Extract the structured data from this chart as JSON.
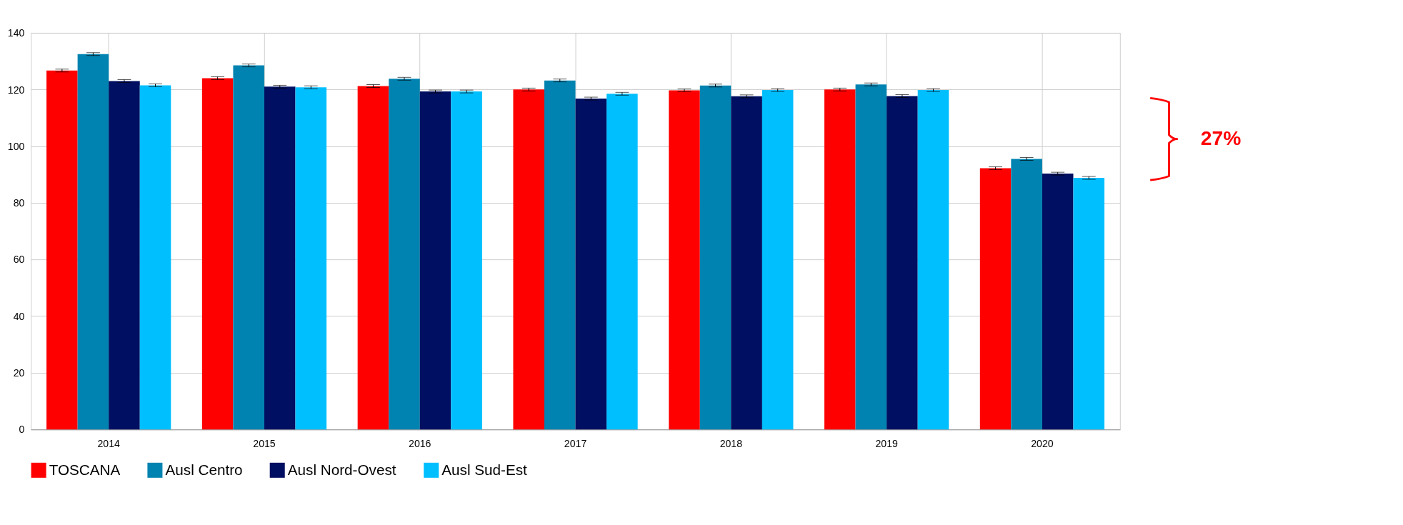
{
  "chart_data": {
    "type": "bar",
    "categories": [
      "2014",
      "2015",
      "2016",
      "2017",
      "2018",
      "2019",
      "2020"
    ],
    "series": [
      {
        "name": "TOSCANA",
        "color": "#ff0000",
        "values": [
          126.7,
          124,
          121.2,
          120,
          119.7,
          120,
          92.2
        ],
        "errors": [
          0.5,
          0.5,
          0.5,
          0.5,
          0.5,
          0.5,
          0.5
        ]
      },
      {
        "name": "Ausl Centro",
        "color": "#0083b0",
        "values": [
          132.5,
          128.5,
          123.8,
          123.2,
          121.4,
          121.8,
          95.5
        ],
        "errors": [
          0.5,
          0.5,
          0.5,
          0.5,
          0.5,
          0.5,
          0.5
        ]
      },
      {
        "name": "Ausl Nord-Ovest",
        "color": "#000f61",
        "values": [
          123,
          121,
          119.3,
          116.8,
          117.6,
          117.7,
          90.3
        ],
        "errors": [
          0.5,
          0.5,
          0.5,
          0.5,
          0.5,
          0.5,
          0.5
        ]
      },
      {
        "name": "Ausl Sud-Est",
        "color": "#00bfff",
        "values": [
          121.5,
          120.8,
          119.3,
          118.5,
          119.8,
          119.8,
          88.8
        ],
        "errors": [
          0.5,
          0.5,
          0.5,
          0.5,
          0.5,
          0.5,
          0.5
        ]
      }
    ],
    "ylim": [
      0,
      140
    ],
    "yticks": [
      0,
      20,
      40,
      60,
      80,
      100,
      120,
      140
    ],
    "grid": true,
    "legend": "bottom",
    "annotations": [
      "27%"
    ]
  }
}
